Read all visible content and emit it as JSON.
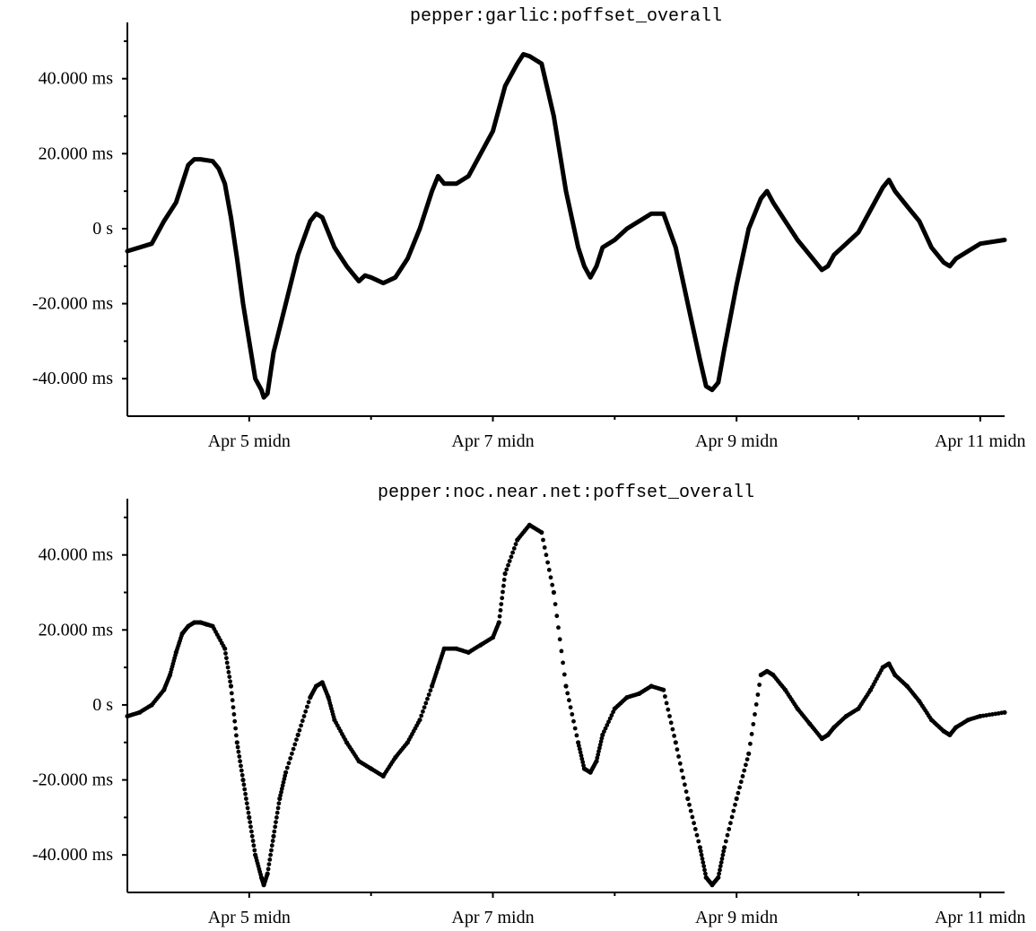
{
  "chart_data": [
    {
      "type": "line",
      "title": "pepper:garlic:poffset_overall",
      "xlabel": "",
      "ylabel": "",
      "x_unit": "days since Apr 4 00:00",
      "xlim": [
        0,
        7.2
      ],
      "ylim": [
        -50,
        55
      ],
      "yticks": [
        -40,
        -20,
        0,
        20,
        40
      ],
      "ytick_labels": [
        "-40.000 ms",
        "-20.000 ms",
        "0 s",
        "20.000 ms",
        "40.000 ms"
      ],
      "xticks": [
        1,
        3,
        5,
        7
      ],
      "xtick_labels": [
        "Apr  5 midn",
        "Apr  7 midn",
        "Apr  9 midn",
        "Apr 11 midn"
      ],
      "grid": false,
      "series": [
        {
          "name": "",
          "points": [
            [
              0.0,
              -6
            ],
            [
              0.1,
              -5
            ],
            [
              0.2,
              -4
            ],
            [
              0.3,
              2
            ],
            [
              0.4,
              7
            ],
            [
              0.45,
              12
            ],
            [
              0.5,
              17
            ],
            [
              0.55,
              18.5
            ],
            [
              0.6,
              18.5
            ],
            [
              0.7,
              18
            ],
            [
              0.75,
              16
            ],
            [
              0.8,
              12
            ],
            [
              0.85,
              3
            ],
            [
              0.9,
              -8
            ],
            [
              0.95,
              -20
            ],
            [
              1.0,
              -30
            ],
            [
              1.05,
              -40
            ],
            [
              1.1,
              -43
            ],
            [
              1.12,
              -45
            ],
            [
              1.15,
              -44
            ],
            [
              1.2,
              -33
            ],
            [
              1.3,
              -20
            ],
            [
              1.4,
              -7
            ],
            [
              1.5,
              2
            ],
            [
              1.55,
              4
            ],
            [
              1.6,
              3
            ],
            [
              1.7,
              -5
            ],
            [
              1.8,
              -10
            ],
            [
              1.9,
              -14
            ],
            [
              1.95,
              -12.5
            ],
            [
              2.0,
              -13
            ],
            [
              2.1,
              -14.5
            ],
            [
              2.2,
              -13
            ],
            [
              2.3,
              -8
            ],
            [
              2.4,
              0
            ],
            [
              2.5,
              10
            ],
            [
              2.55,
              14
            ],
            [
              2.6,
              12
            ],
            [
              2.7,
              12
            ],
            [
              2.8,
              14
            ],
            [
              2.9,
              20
            ],
            [
              3.0,
              26
            ],
            [
              3.05,
              32
            ],
            [
              3.1,
              38
            ],
            [
              3.2,
              44
            ],
            [
              3.25,
              46.5
            ],
            [
              3.3,
              46
            ],
            [
              3.4,
              44
            ],
            [
              3.5,
              30
            ],
            [
              3.6,
              10
            ],
            [
              3.7,
              -5
            ],
            [
              3.75,
              -10
            ],
            [
              3.8,
              -13
            ],
            [
              3.85,
              -10
            ],
            [
              3.9,
              -5
            ],
            [
              4.0,
              -3
            ],
            [
              4.1,
              0
            ],
            [
              4.2,
              2
            ],
            [
              4.3,
              4
            ],
            [
              4.4,
              4
            ],
            [
              4.5,
              -5
            ],
            [
              4.6,
              -20
            ],
            [
              4.7,
              -35
            ],
            [
              4.75,
              -42
            ],
            [
              4.8,
              -43
            ],
            [
              4.85,
              -41
            ],
            [
              4.9,
              -32
            ],
            [
              5.0,
              -15
            ],
            [
              5.1,
              0
            ],
            [
              5.2,
              8
            ],
            [
              5.25,
              10
            ],
            [
              5.3,
              7
            ],
            [
              5.4,
              2
            ],
            [
              5.5,
              -3
            ],
            [
              5.6,
              -7
            ],
            [
              5.7,
              -11
            ],
            [
              5.75,
              -10
            ],
            [
              5.8,
              -7
            ],
            [
              5.9,
              -4
            ],
            [
              6.0,
              -1
            ],
            [
              6.1,
              5
            ],
            [
              6.2,
              11
            ],
            [
              6.25,
              13
            ],
            [
              6.3,
              10
            ],
            [
              6.4,
              6
            ],
            [
              6.5,
              2
            ],
            [
              6.6,
              -5
            ],
            [
              6.7,
              -9
            ],
            [
              6.75,
              -10
            ],
            [
              6.8,
              -8
            ],
            [
              6.9,
              -6
            ],
            [
              7.0,
              -4
            ],
            [
              7.2,
              -3
            ]
          ]
        }
      ]
    },
    {
      "type": "scatter",
      "title": "pepper:noc.near.net:poffset_overall",
      "xlabel": "",
      "ylabel": "",
      "x_unit": "days since Apr 4 00:00",
      "xlim": [
        0,
        7.2
      ],
      "ylim": [
        -50,
        55
      ],
      "yticks": [
        -40,
        -20,
        0,
        20,
        40
      ],
      "ytick_labels": [
        "-40.000 ms",
        "-20.000 ms",
        "0 s",
        "20.000 ms",
        "40.000 ms"
      ],
      "xticks": [
        1,
        3,
        5,
        7
      ],
      "xtick_labels": [
        "Apr  5 midn",
        "Apr  7 midn",
        "Apr  9 midn",
        "Apr 11 midn"
      ],
      "grid": false,
      "series": [
        {
          "name": "",
          "points": [
            [
              0.0,
              -3
            ],
            [
              0.1,
              -2
            ],
            [
              0.2,
              0
            ],
            [
              0.3,
              4
            ],
            [
              0.35,
              8
            ],
            [
              0.4,
              14
            ],
            [
              0.45,
              19
            ],
            [
              0.5,
              21
            ],
            [
              0.55,
              22
            ],
            [
              0.6,
              22
            ],
            [
              0.65,
              21.5
            ],
            [
              0.7,
              21
            ],
            [
              0.8,
              15
            ],
            [
              0.85,
              5
            ],
            [
              0.9,
              -10
            ],
            [
              0.95,
              -20
            ],
            [
              1.0,
              -30
            ],
            [
              1.05,
              -40
            ],
            [
              1.1,
              -46
            ],
            [
              1.12,
              -48
            ],
            [
              1.15,
              -45
            ],
            [
              1.2,
              -35
            ],
            [
              1.25,
              -25
            ],
            [
              1.3,
              -18
            ],
            [
              1.4,
              -8
            ],
            [
              1.5,
              2
            ],
            [
              1.55,
              5
            ],
            [
              1.6,
              6
            ],
            [
              1.65,
              2
            ],
            [
              1.7,
              -4
            ],
            [
              1.8,
              -10
            ],
            [
              1.9,
              -15
            ],
            [
              2.0,
              -17
            ],
            [
              2.1,
              -19
            ],
            [
              2.2,
              -14
            ],
            [
              2.3,
              -10
            ],
            [
              2.4,
              -4
            ],
            [
              2.5,
              5
            ],
            [
              2.55,
              10
            ],
            [
              2.6,
              15
            ],
            [
              2.7,
              15
            ],
            [
              2.8,
              14
            ],
            [
              2.9,
              16
            ],
            [
              3.0,
              18
            ],
            [
              3.05,
              22
            ],
            [
              3.1,
              35
            ],
            [
              3.2,
              44
            ],
            [
              3.3,
              48
            ],
            [
              3.4,
              46
            ],
            [
              3.5,
              30
            ],
            [
              3.6,
              5
            ],
            [
              3.7,
              -10
            ],
            [
              3.75,
              -17
            ],
            [
              3.8,
              -18
            ],
            [
              3.85,
              -15
            ],
            [
              3.9,
              -8
            ],
            [
              4.0,
              -1
            ],
            [
              4.1,
              2
            ],
            [
              4.2,
              3
            ],
            [
              4.3,
              5
            ],
            [
              4.4,
              4
            ],
            [
              4.5,
              -10
            ],
            [
              4.6,
              -25
            ],
            [
              4.7,
              -38
            ],
            [
              4.75,
              -46
            ],
            [
              4.8,
              -48
            ],
            [
              4.85,
              -46
            ],
            [
              4.9,
              -38
            ],
            [
              5.0,
              -25
            ],
            [
              5.1,
              -13
            ],
            [
              5.2,
              8
            ],
            [
              5.25,
              9
            ],
            [
              5.3,
              8
            ],
            [
              5.4,
              4
            ],
            [
              5.5,
              -1
            ],
            [
              5.6,
              -5
            ],
            [
              5.7,
              -9
            ],
            [
              5.75,
              -8
            ],
            [
              5.8,
              -6
            ],
            [
              5.9,
              -3
            ],
            [
              6.0,
              -1
            ],
            [
              6.1,
              4
            ],
            [
              6.2,
              10
            ],
            [
              6.25,
              11
            ],
            [
              6.3,
              8
            ],
            [
              6.4,
              5
            ],
            [
              6.5,
              1
            ],
            [
              6.6,
              -4
            ],
            [
              6.7,
              -7
            ],
            [
              6.75,
              -8
            ],
            [
              6.8,
              -6
            ],
            [
              6.9,
              -4
            ],
            [
              7.0,
              -3
            ],
            [
              7.2,
              -2
            ]
          ]
        }
      ]
    }
  ]
}
